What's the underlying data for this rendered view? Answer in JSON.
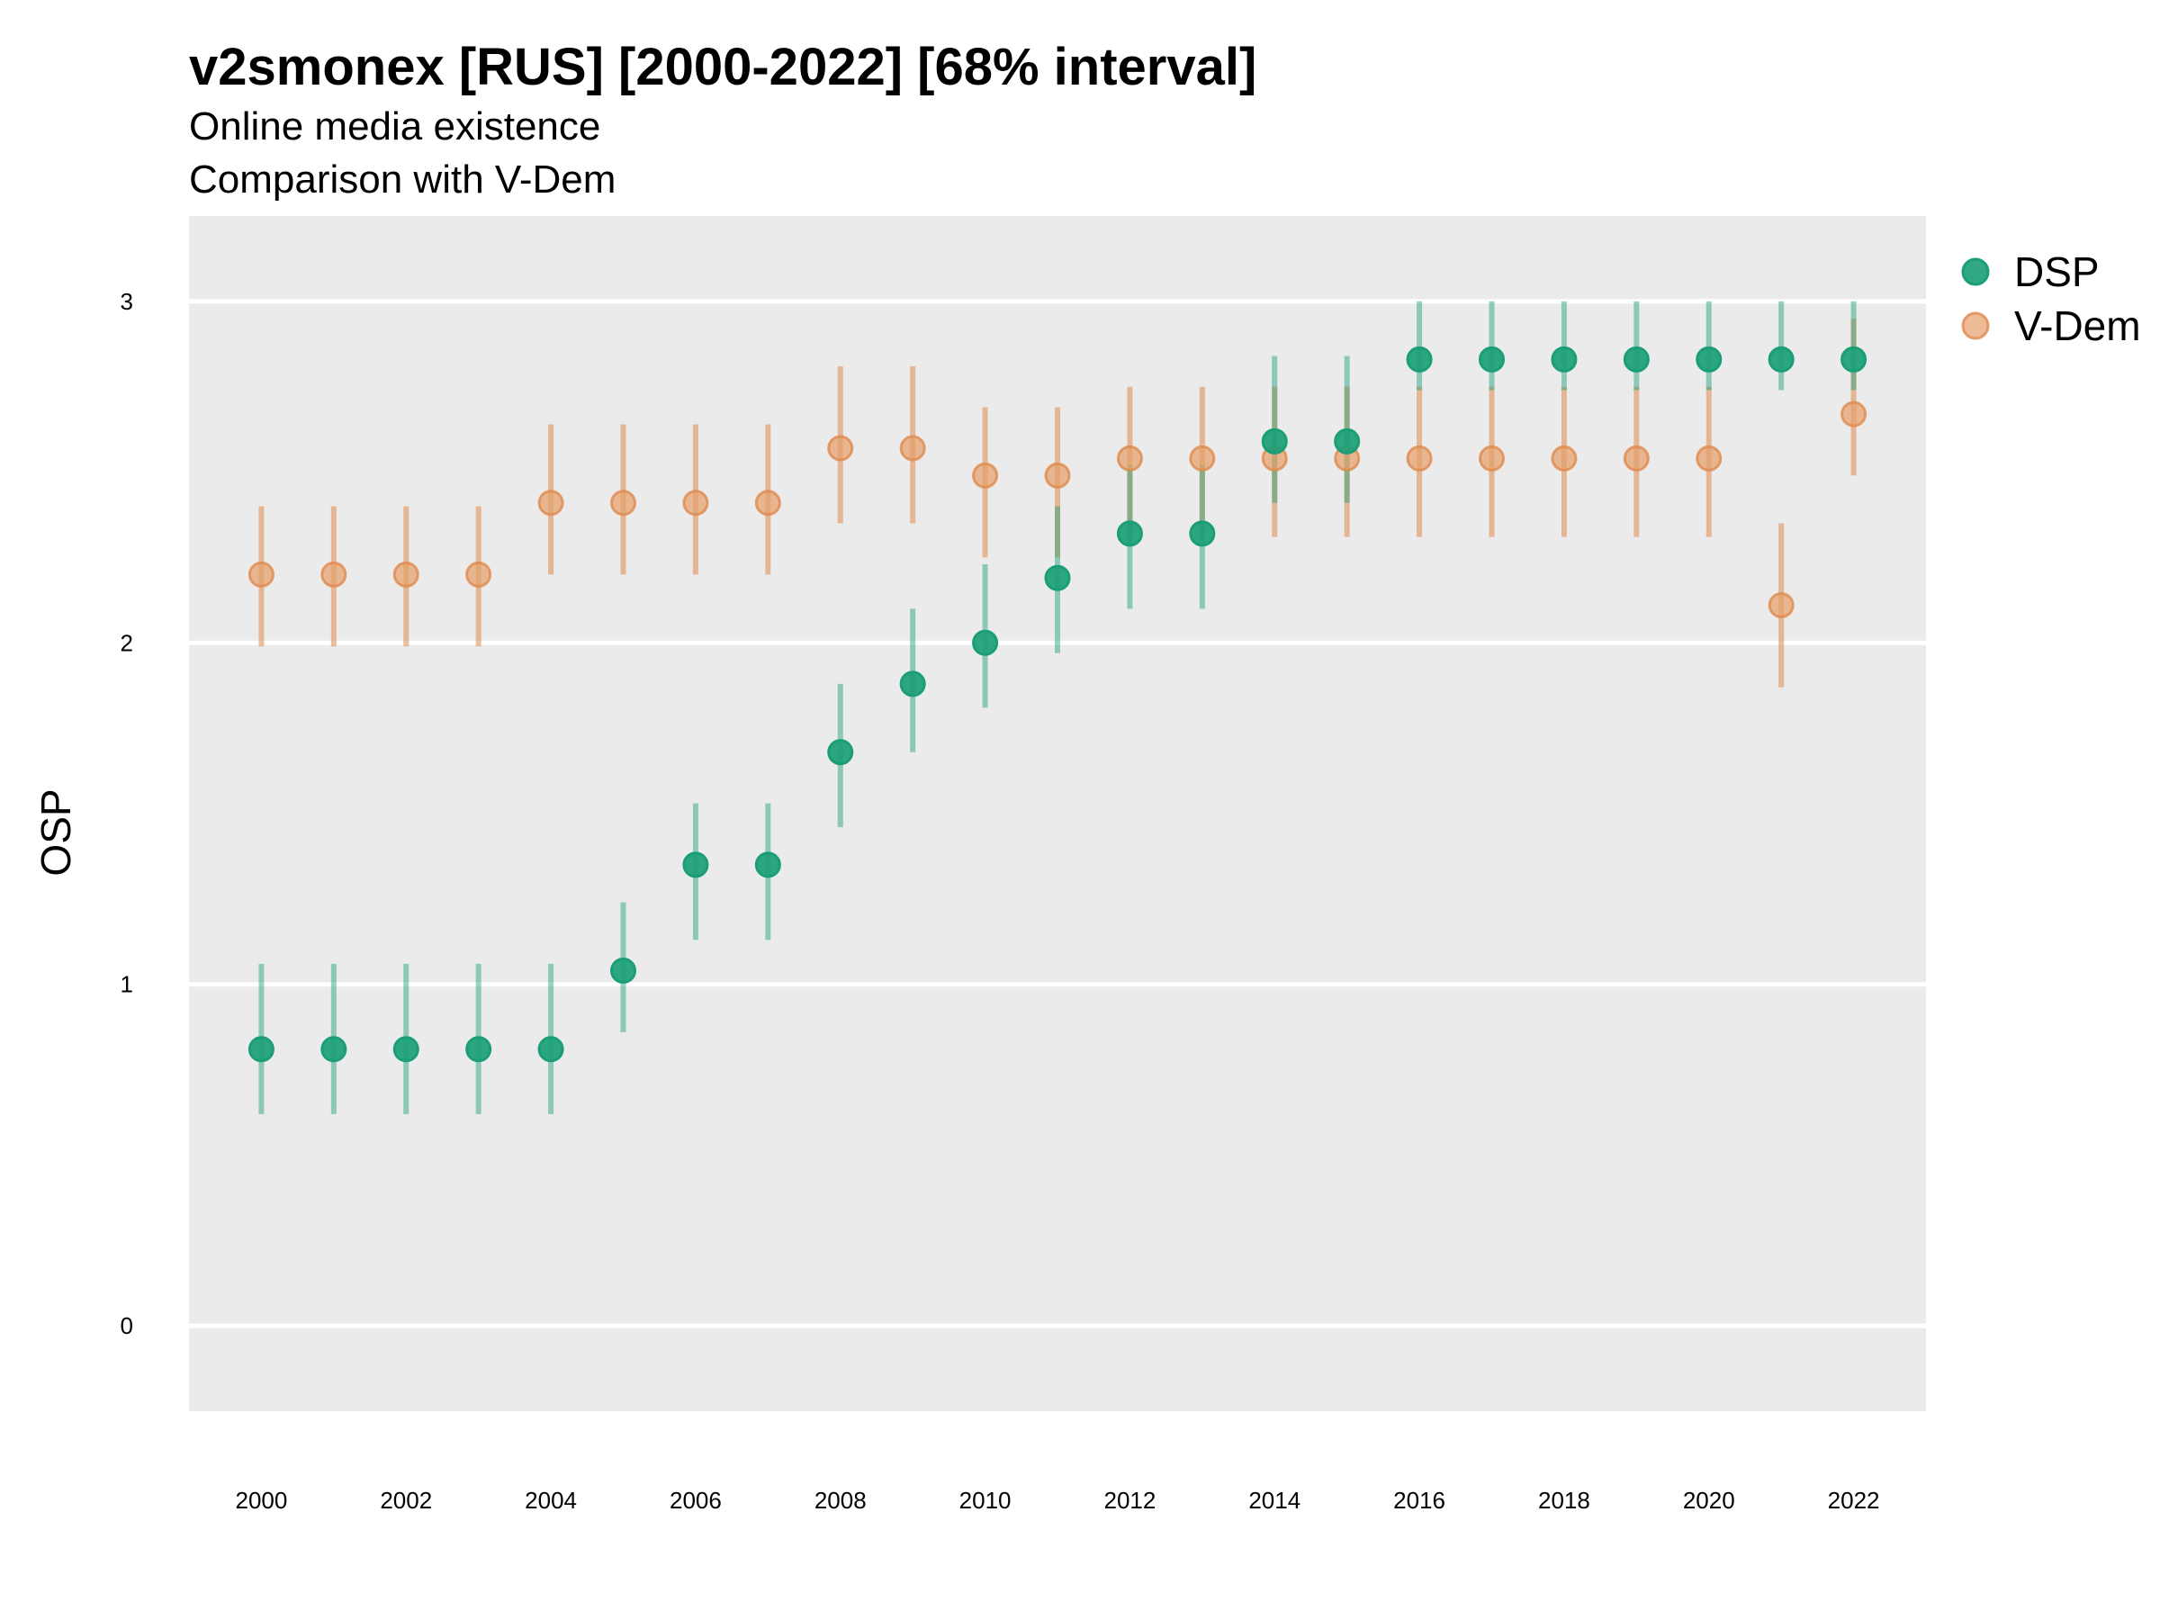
{
  "chart_data": {
    "type": "scatter",
    "title": "v2smonex [RUS] [2000-2022] [68% interval]",
    "subtitle_lines": [
      "Online media existence",
      "Comparison with V-Dem"
    ],
    "xlabel": "",
    "ylabel": "OSP",
    "xlim": [
      1999,
      2023
    ],
    "ylim": [
      -0.25,
      3.25
    ],
    "x_ticks": [
      "2000",
      "2002",
      "2004",
      "2006",
      "2008",
      "2010",
      "2012",
      "2014",
      "2016",
      "2018",
      "2020",
      "2022"
    ],
    "y_ticks": [
      "0",
      "1",
      "2",
      "3"
    ],
    "grid": true,
    "legend_position": "right",
    "colors": {
      "DSP": "#1b9e77",
      "V-Dem": "#e6a06a",
      "panel": "#ebebeb",
      "grid": "#ffffff"
    },
    "series": [
      {
        "name": "DSP",
        "x": [
          2000,
          2001,
          2002,
          2003,
          2004,
          2005,
          2006,
          2007,
          2008,
          2009,
          2010,
          2011,
          2012,
          2013,
          2014,
          2015,
          2016,
          2017,
          2018,
          2019,
          2020,
          2021,
          2022
        ],
        "y": [
          0.81,
          0.81,
          0.81,
          0.81,
          0.81,
          1.04,
          1.35,
          1.35,
          1.68,
          1.88,
          2.0,
          2.19,
          2.32,
          2.32,
          2.59,
          2.59,
          2.83,
          2.83,
          2.83,
          2.83,
          2.83,
          2.83,
          2.83
        ],
        "lower": [
          0.62,
          0.62,
          0.62,
          0.62,
          0.62,
          0.86,
          1.13,
          1.13,
          1.46,
          1.68,
          1.81,
          1.97,
          2.1,
          2.1,
          2.41,
          2.41,
          2.74,
          2.74,
          2.74,
          2.74,
          2.74,
          2.74,
          2.74
        ],
        "upper": [
          1.06,
          1.06,
          1.06,
          1.06,
          1.06,
          1.24,
          1.53,
          1.53,
          1.88,
          2.1,
          2.23,
          2.4,
          2.52,
          2.52,
          2.84,
          2.84,
          3.0,
          3.0,
          3.0,
          3.0,
          3.0,
          3.0,
          3.0
        ]
      },
      {
        "name": "V-Dem",
        "x": [
          2000,
          2001,
          2002,
          2003,
          2004,
          2005,
          2006,
          2007,
          2008,
          2009,
          2010,
          2011,
          2012,
          2013,
          2014,
          2015,
          2016,
          2017,
          2018,
          2019,
          2020,
          2021,
          2022
        ],
        "y": [
          2.2,
          2.2,
          2.2,
          2.2,
          2.41,
          2.41,
          2.41,
          2.41,
          2.57,
          2.57,
          2.49,
          2.49,
          2.54,
          2.54,
          2.54,
          2.54,
          2.54,
          2.54,
          2.54,
          2.54,
          2.54,
          2.11,
          2.67
        ],
        "lower": [
          1.99,
          1.99,
          1.99,
          1.99,
          2.2,
          2.2,
          2.2,
          2.2,
          2.35,
          2.35,
          2.25,
          2.25,
          2.31,
          2.31,
          2.31,
          2.31,
          2.31,
          2.31,
          2.31,
          2.31,
          2.31,
          1.87,
          2.49
        ],
        "upper": [
          2.4,
          2.4,
          2.4,
          2.4,
          2.64,
          2.64,
          2.64,
          2.64,
          2.81,
          2.81,
          2.69,
          2.69,
          2.75,
          2.75,
          2.75,
          2.75,
          2.75,
          2.75,
          2.75,
          2.75,
          2.75,
          2.35,
          2.95
        ]
      }
    ]
  }
}
